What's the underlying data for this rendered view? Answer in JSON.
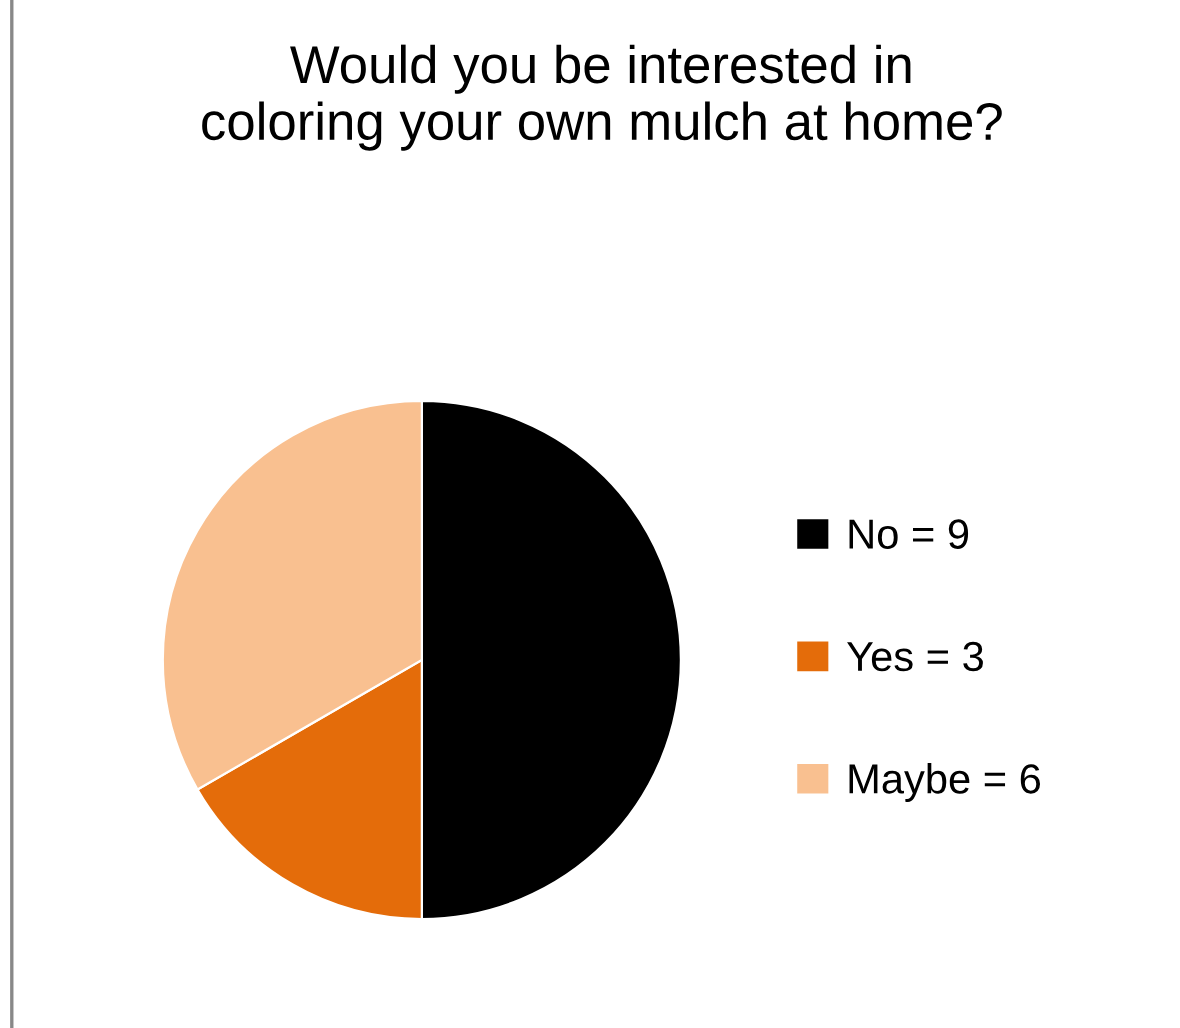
{
  "chart_data": {
    "type": "pie",
    "title": "Would you be interested in\ncoloring your own mulch at home?",
    "categories": [
      "No = 9",
      "Yes = 3",
      "Maybe = 6"
    ],
    "values": [
      9,
      3,
      6
    ],
    "colors": [
      "#000000",
      "#e46c0a",
      "#f9c090"
    ],
    "legend": "right"
  }
}
